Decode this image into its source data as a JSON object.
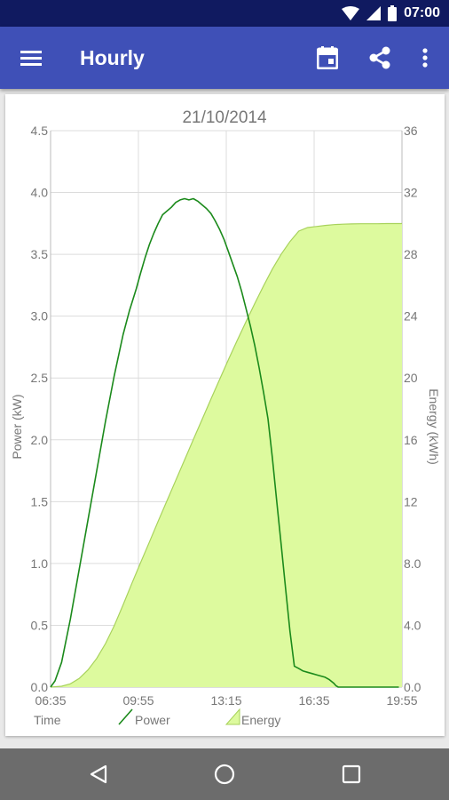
{
  "status_bar": {
    "time": "07:00"
  },
  "app_bar": {
    "title": "Hourly"
  },
  "chart_data": {
    "type": "line",
    "title": "21/10/2014",
    "xlabel": "Time",
    "ylabel_left": "Power (kW)",
    "ylabel_right": "Energy (kWh)",
    "x_tick_labels": [
      "06:35",
      "09:55",
      "13:15",
      "16:35",
      "19:55"
    ],
    "y_left_tick_labels": [
      "0.0",
      "0.5",
      "1.0",
      "1.5",
      "2.0",
      "2.5",
      "3.0",
      "3.5",
      "4.0",
      "4.5"
    ],
    "y_right_tick_labels": [
      "0.0",
      "4.0",
      "8.0",
      "12",
      "16",
      "20",
      "24",
      "28",
      "32",
      "36"
    ],
    "y_left_range": [
      0,
      4.5
    ],
    "y_right_range": [
      0,
      36
    ],
    "x_range_minutes": [
      395,
      1195
    ],
    "grid": true,
    "legend_position": "bottom",
    "colors": {
      "power": "#1b8a1b",
      "energy_fill": "#ddfa9e",
      "energy_line": "#a8d25c",
      "grid": "#dcdcdc",
      "text": "#777777"
    },
    "series": [
      {
        "name": "Power",
        "axis": "left",
        "style": "line",
        "x": [
          395,
          405,
          420,
          440,
          460,
          480,
          500,
          520,
          540,
          560,
          575,
          590,
          600,
          610,
          620,
          630,
          640,
          650,
          660,
          670,
          680,
          690,
          700,
          710,
          720,
          730,
          740,
          750,
          760,
          770,
          780,
          790,
          800,
          810,
          820,
          830,
          840,
          850,
          860,
          870,
          880,
          890,
          900,
          910,
          920,
          930,
          940,
          950,
          960,
          970,
          980,
          990,
          1000,
          1010,
          1020,
          1030,
          1040,
          1045,
          1050,
          1055,
          1060,
          1080,
          1100,
          1120,
          1140,
          1160,
          1180,
          1188
        ],
        "values": [
          0.0,
          0.05,
          0.2,
          0.55,
          0.95,
          1.35,
          1.75,
          2.15,
          2.52,
          2.85,
          3.05,
          3.22,
          3.35,
          3.47,
          3.58,
          3.67,
          3.75,
          3.82,
          3.85,
          3.88,
          3.92,
          3.94,
          3.95,
          3.94,
          3.95,
          3.93,
          3.9,
          3.87,
          3.83,
          3.77,
          3.7,
          3.62,
          3.52,
          3.42,
          3.32,
          3.2,
          3.06,
          2.92,
          2.76,
          2.58,
          2.38,
          2.17,
          1.85,
          1.5,
          1.15,
          0.8,
          0.45,
          0.17,
          0.15,
          0.13,
          0.12,
          0.11,
          0.1,
          0.09,
          0.08,
          0.06,
          0.03,
          0.01,
          0.0,
          0.0,
          0.0,
          0.0,
          0.0,
          0.0,
          0.0,
          0.0,
          0.0,
          0.0
        ]
      },
      {
        "name": "Energy",
        "axis": "right",
        "style": "area",
        "x": [
          395,
          420,
          440,
          460,
          480,
          500,
          520,
          540,
          560,
          580,
          600,
          620,
          640,
          660,
          680,
          700,
          720,
          740,
          760,
          780,
          800,
          820,
          840,
          860,
          880,
          900,
          920,
          940,
          960,
          980,
          1000,
          1020,
          1040,
          1060,
          1080,
          1100,
          1120,
          1140,
          1160,
          1180,
          1195
        ],
        "values": [
          0.0,
          0.06,
          0.21,
          0.56,
          1.11,
          1.86,
          2.82,
          3.98,
          5.32,
          6.71,
          8.06,
          9.39,
          10.74,
          12.06,
          13.38,
          14.7,
          16.02,
          17.33,
          18.63,
          19.92,
          21.2,
          22.44,
          23.65,
          24.83,
          25.97,
          27.05,
          28.01,
          28.83,
          29.5,
          29.73,
          29.8,
          29.87,
          29.92,
          29.95,
          29.97,
          29.98,
          29.98,
          29.98,
          29.99,
          29.99,
          29.99
        ]
      }
    ],
    "legend": [
      {
        "name": "Power",
        "style": "line"
      },
      {
        "name": "Energy",
        "style": "area"
      }
    ]
  }
}
